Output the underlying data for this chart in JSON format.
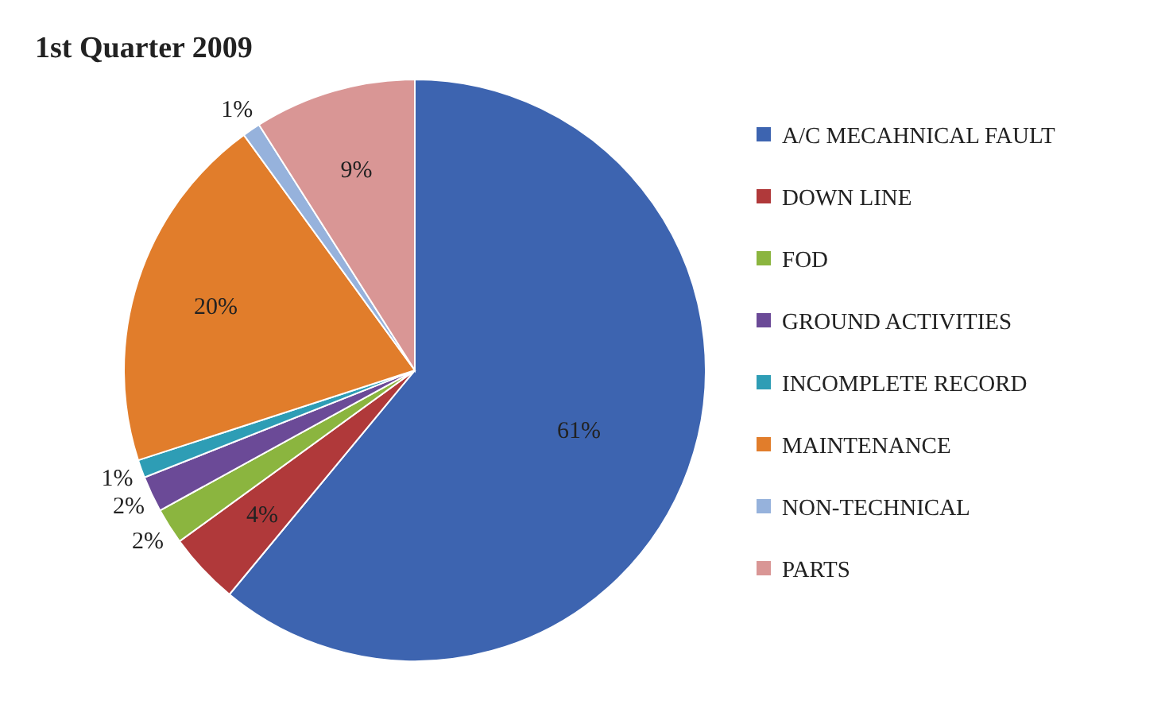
{
  "chart_data": {
    "type": "pie",
    "title": "1st Quarter 2009",
    "categories": [
      "A/C MECAHNICAL FAULT",
      "DOWN LINE",
      "FOD",
      "GROUND ACTIVITIES",
      "INCOMPLETE RECORD",
      "MAINTENANCE",
      "NON-TECHNICAL",
      "PARTS"
    ],
    "values": [
      61,
      4,
      2,
      2,
      1,
      20,
      1,
      9
    ],
    "colors": [
      "#3d64b0",
      "#b0393a",
      "#8bb53f",
      "#6b4a97",
      "#2e9db5",
      "#e17d2b",
      "#96b2dc",
      "#d99695"
    ],
    "value_labels": [
      "61%",
      "4%",
      "2%",
      "2%",
      "1%",
      "20%",
      "1%",
      "9%"
    ],
    "legend": "right"
  }
}
